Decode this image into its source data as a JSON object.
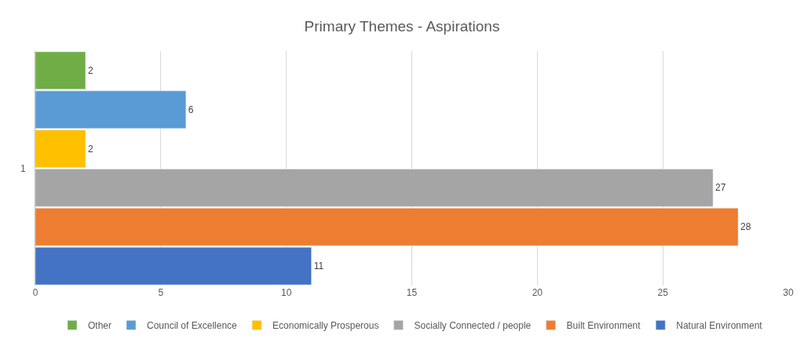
{
  "chart_data": {
    "type": "bar",
    "title": "Primary Themes - Aspirations",
    "ylabel": "1",
    "orientation": "horizontal",
    "categories": [
      null,
      null,
      null,
      null,
      null,
      null
    ],
    "series": [
      {
        "name": "Other",
        "color": "#70ad47",
        "values": [
          2,
          null,
          null,
          null,
          null,
          null
        ]
      },
      {
        "name": "Council of Excellence",
        "color": "#5b9bd5",
        "values": [
          null,
          6,
          null,
          null,
          null,
          null
        ]
      },
      {
        "name": "Economically Prosperous",
        "color": "#ffc000",
        "values": [
          null,
          null,
          2,
          null,
          null,
          null
        ]
      },
      {
        "name": "Socially Connected / people",
        "color": "#a5a5a5",
        "values": [
          null,
          null,
          null,
          27,
          null,
          null
        ]
      },
      {
        "name": "Built Environment",
        "color": "#ed7d31",
        "values": [
          null,
          null,
          null,
          null,
          28,
          null
        ]
      },
      {
        "name": "Natural Environment",
        "color": "#4472c4",
        "values": [
          null,
          null,
          null,
          null,
          null,
          11
        ]
      }
    ],
    "xlim": [
      0,
      30
    ],
    "xticks": [
      0,
      5,
      10,
      15,
      20,
      25,
      30
    ],
    "grid": "x",
    "legend": "bottom",
    "data_labels": true
  }
}
